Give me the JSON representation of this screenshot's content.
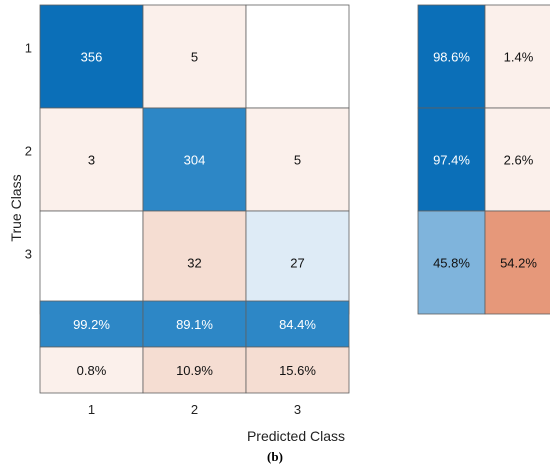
{
  "chart_data": {
    "type": "heatmap",
    "title": "",
    "xlabel": "Predicted Class",
    "ylabel": "True Class",
    "classes": [
      "1",
      "2",
      "3"
    ],
    "confusion_matrix": {
      "rows": [
        [
          "356",
          "5",
          ""
        ],
        [
          "3",
          "304",
          "5"
        ],
        [
          "",
          "32",
          "27"
        ]
      ]
    },
    "row_summary": {
      "rows": [
        [
          "98.6%",
          "1.4%"
        ],
        [
          "97.4%",
          "2.6%"
        ],
        [
          "45.8%",
          "54.2%"
        ]
      ]
    },
    "column_summary": {
      "rows": [
        [
          "99.2%",
          "89.1%",
          "84.4%"
        ],
        [
          "0.8%",
          "10.9%",
          "15.6%"
        ]
      ]
    },
    "colors": {
      "correct_strong": "#0b6fb8",
      "correct_medium": "#2d87c6",
      "correct_light": "#7fb4dc",
      "correct_faint": "#deebf6",
      "incorrect_strong": "#e6987a",
      "incorrect_light": "#f5ddd2",
      "incorrect_faint": "#fbf0eb",
      "empty": "#ffffff"
    }
  },
  "caption": "(b)"
}
